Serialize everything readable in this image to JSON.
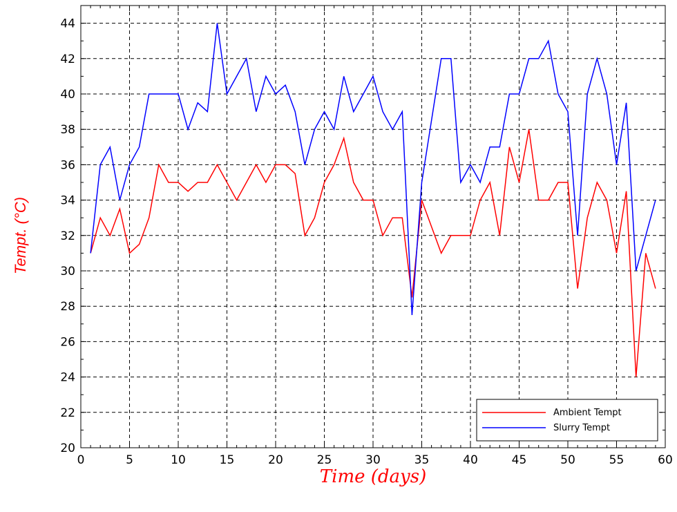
{
  "chart_data": {
    "type": "line",
    "title": "",
    "xlabel": "Time (days)",
    "ylabel": "Tempt.  (°C)",
    "xlim": [
      0,
      60
    ],
    "ylim": [
      20,
      45
    ],
    "xticks": [
      0,
      5,
      10,
      15,
      20,
      25,
      30,
      35,
      40,
      45,
      50,
      55,
      60
    ],
    "yticks": [
      20,
      22,
      24,
      26,
      28,
      30,
      32,
      34,
      36,
      38,
      40,
      42,
      44
    ],
    "grid": true,
    "legend_position": "bottom-right",
    "x": [
      1,
      2,
      3,
      4,
      5,
      6,
      7,
      8,
      9,
      10,
      11,
      12,
      13,
      14,
      15,
      16,
      17,
      18,
      19,
      20,
      21,
      22,
      23,
      24,
      25,
      26,
      27,
      28,
      29,
      30,
      31,
      32,
      33,
      34,
      35,
      36,
      37,
      38,
      39,
      40,
      41,
      42,
      43,
      44,
      45,
      46,
      47,
      48,
      49,
      50,
      51,
      52,
      53,
      54,
      55,
      56,
      57,
      58,
      59
    ],
    "series": [
      {
        "name": "Ambient Tempt",
        "color": "#ff0000",
        "values": [
          31,
          33,
          32,
          33.5,
          31,
          31.5,
          33,
          36,
          35,
          35,
          34.5,
          35,
          35,
          36,
          35,
          34,
          35,
          36,
          35,
          36,
          36,
          35.5,
          32,
          33,
          35,
          36,
          37.5,
          35,
          34,
          34,
          32,
          33,
          33,
          28.5,
          34,
          32.5,
          31,
          32,
          32,
          32,
          34,
          35,
          32,
          37,
          35,
          38,
          34,
          34,
          35,
          35,
          29,
          33,
          35,
          34,
          31,
          34.5,
          24,
          31,
          29
        ]
      },
      {
        "name": "Slurry Tempt",
        "color": "#0000ff",
        "values": [
          31,
          36,
          37,
          34,
          36,
          37,
          40,
          40,
          40,
          40,
          38,
          39.5,
          39,
          44,
          40,
          41,
          42,
          39,
          41,
          40,
          40.5,
          39,
          36,
          38,
          39,
          38,
          41,
          39,
          40,
          41,
          39,
          38,
          39,
          27.5,
          35,
          38.5,
          42,
          42,
          35,
          36,
          35,
          37,
          37,
          40,
          40,
          42,
          42,
          43,
          40,
          39,
          32,
          40,
          42,
          40,
          36,
          39.5,
          30,
          32,
          34
        ]
      }
    ]
  },
  "legend": {
    "items": [
      {
        "label": "Ambient Tempt",
        "color": "#ff0000"
      },
      {
        "label": "Slurry Tempt",
        "color": "#0000ff"
      }
    ]
  }
}
